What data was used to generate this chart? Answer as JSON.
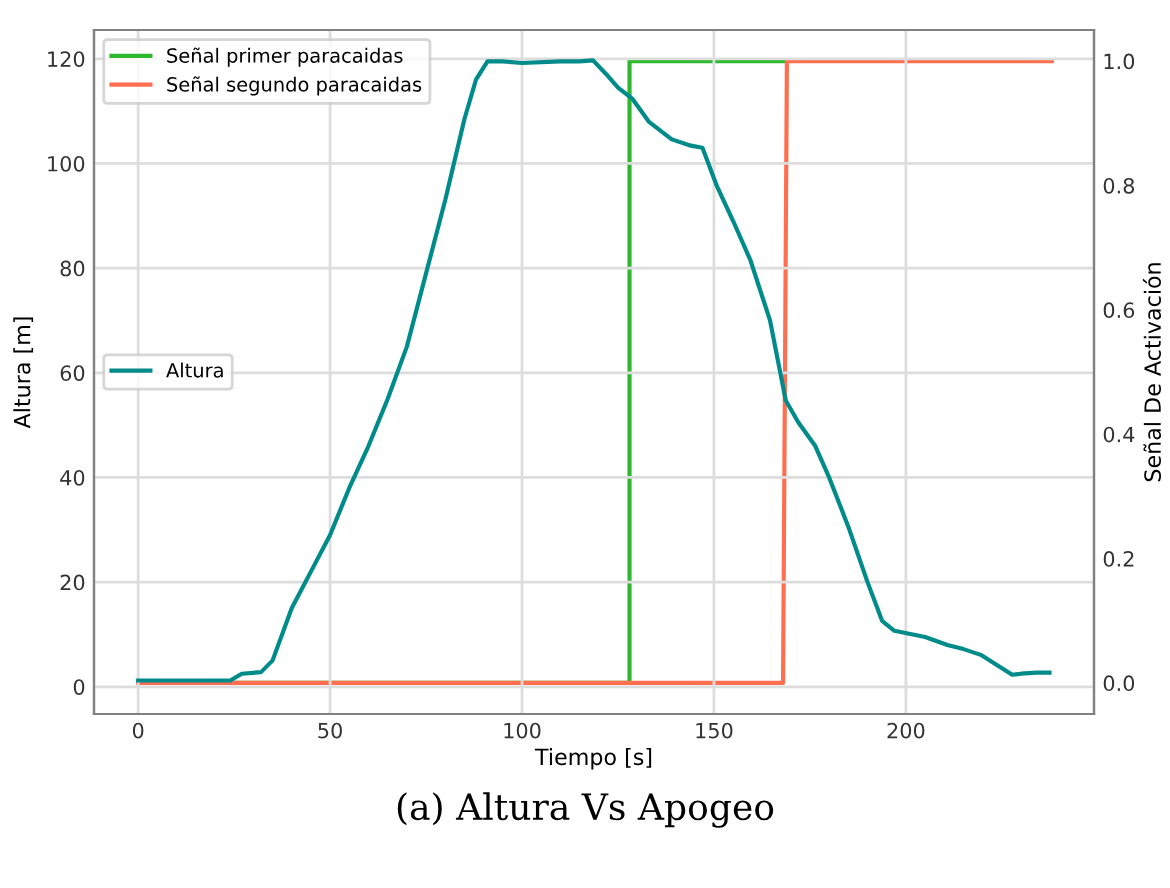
{
  "chart_data": {
    "type": "line",
    "xlabel": "Tiempo [s]",
    "ylabel": "Altura [m]",
    "y2label": "Señal De Activación",
    "annotations": [
      "(a) Altura Vs Apogeo"
    ],
    "xlim": [
      -11.5,
      249
    ],
    "xticks": [
      0,
      50,
      100,
      150,
      200
    ],
    "ylim": [
      -5.2,
      125.5
    ],
    "yticks": [
      0,
      20,
      40,
      60,
      80,
      100,
      120
    ],
    "y2lim": [
      -0.05,
      1.05
    ],
    "y2ticks": [
      {
        "value": 0,
        "label": "0.0"
      },
      0.2,
      0.4,
      0.6,
      0.8,
      {
        "value": 1,
        "label": "1.0"
      }
    ],
    "grid": true,
    "legend": "top left",
    "series": [
      {
        "name": "Altura",
        "color": "#008b8b",
        "axis": "y",
        "x": [
          0,
          10,
          20,
          24,
          27,
          32,
          35,
          40,
          45,
          50,
          55,
          60,
          65,
          70,
          75,
          80,
          85,
          88,
          91,
          95,
          100,
          110,
          115,
          118.5,
          122,
          125,
          128.7,
          133,
          139,
          144,
          147,
          150.8,
          155,
          159.5,
          164.6,
          168.7,
          172,
          176.4,
          180,
          185,
          190,
          193.8,
          197,
          205,
          210.8,
          215,
          219.5,
          224,
          227.7,
          230,
          234,
          237.4
        ],
        "values": [
          1.2,
          1.2,
          1.2,
          1.2,
          2.5,
          2.8,
          5,
          15,
          22,
          29,
          38,
          46,
          55,
          65,
          79,
          93,
          108.5,
          116,
          119.5,
          119.5,
          119.2,
          119.5,
          119.5,
          119.7,
          117,
          114.5,
          112.4,
          108,
          104.6,
          103.4,
          103,
          95.6,
          89,
          81.5,
          70,
          54.7,
          50.5,
          46,
          40,
          30.6,
          20,
          12.6,
          10.7,
          9.5,
          8,
          7.2,
          6.1,
          4,
          2.3,
          2.5,
          2.7,
          2.7
        ]
      },
      {
        "name": "Señal primer paracaidas",
        "color": "#2eb82e",
        "axis": "y2",
        "x": [
          0,
          128,
          128,
          168
        ],
        "values": [
          0,
          0,
          1,
          1
        ]
      },
      {
        "name": "Señal segundo paracaidas",
        "color": "#ff6f4f",
        "axis": "y2",
        "x": [
          0,
          168,
          169,
          238
        ],
        "values": [
          0,
          0,
          1,
          1
        ]
      }
    ]
  }
}
